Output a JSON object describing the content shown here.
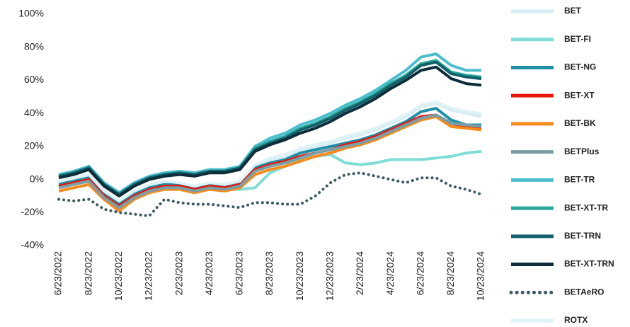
{
  "chart_data": {
    "type": "line",
    "categories": [
      "6/23/2022",
      null,
      "8/23/2022",
      null,
      "10/23/2022",
      null,
      "12/23/2022",
      null,
      "2/23/2023",
      null,
      "4/23/2023",
      null,
      "6/23/2023",
      null,
      "8/23/2023",
      null,
      "10/23/2023",
      null,
      "12/23/2023",
      null,
      "2/23/2024",
      null,
      "4/23/2024",
      null,
      "6/23/2024",
      null,
      "8/23/2024",
      null,
      "10/23/2024"
    ],
    "ylim": [
      -40,
      100
    ],
    "yticks": [
      {
        "value": -40,
        "label": "-40%"
      },
      {
        "value": -20,
        "label": "-20%"
      },
      {
        "value": 0,
        "label": "0%"
      },
      {
        "value": 20,
        "label": "20%"
      },
      {
        "value": 40,
        "label": "40%"
      },
      {
        "value": 60,
        "label": "60%"
      },
      {
        "value": 80,
        "label": "80%"
      },
      {
        "value": 100,
        "label": "100%"
      }
    ],
    "series": [
      {
        "name": "BET",
        "color": "#d4ecf3",
        "values": [
          -2,
          0,
          2,
          -8,
          -14,
          -8,
          -4,
          -2,
          -3,
          -5,
          -3,
          -4,
          -2,
          8,
          12,
          14,
          18,
          20,
          22,
          25,
          27,
          30,
          34,
          38,
          44,
          46,
          42,
          40,
          38
        ]
      },
      {
        "name": "BET-FI",
        "color": "#7fdcd6",
        "values": [
          -4,
          -2,
          0,
          -10,
          -16,
          -10,
          -6,
          -4,
          -5,
          -7,
          -5,
          -6,
          -6,
          -5,
          4,
          8,
          12,
          14,
          15,
          10,
          9,
          10,
          12,
          12,
          12,
          13,
          14,
          16,
          17
        ]
      },
      {
        "name": "BET-NG",
        "color": "#1f8fa8",
        "values": [
          -3,
          -1,
          1,
          -9,
          -15,
          -9,
          -5,
          -3,
          -3,
          -5,
          -3,
          -4,
          -2,
          7,
          10,
          12,
          16,
          18,
          20,
          22,
          24,
          27,
          31,
          35,
          41,
          43,
          36,
          33,
          33
        ]
      },
      {
        "name": "BET-XT",
        "color": "#e8170e",
        "values": [
          -4,
          -2,
          0,
          -10,
          -16,
          -10,
          -6,
          -4,
          -4,
          -6,
          -4,
          -5,
          -3,
          6,
          9,
          11,
          14,
          16,
          18,
          21,
          23,
          26,
          30,
          34,
          38,
          39,
          34,
          32,
          31
        ]
      },
      {
        "name": "BET-BK",
        "color": "#f78a1d",
        "values": [
          -7,
          -5,
          -3,
          -12,
          -19,
          -12,
          -8,
          -6,
          -6,
          -8,
          -6,
          -7,
          -5,
          3,
          6,
          8,
          11,
          14,
          16,
          19,
          21,
          24,
          28,
          32,
          36,
          38,
          32,
          31,
          30
        ]
      },
      {
        "name": "BETPlus",
        "color": "#7a9ea6",
        "values": [
          -5,
          -3,
          -1,
          -11,
          -17,
          -11,
          -7,
          -5,
          -5,
          -7,
          -5,
          -6,
          -4,
          5,
          8,
          10,
          13,
          16,
          18,
          20,
          22,
          25,
          29,
          33,
          37,
          39,
          34,
          33,
          32
        ]
      },
      {
        "name": "BET-TR",
        "color": "#4bbdcc",
        "values": [
          3,
          5,
          8,
          -2,
          -8,
          -2,
          2,
          4,
          5,
          4,
          6,
          6,
          8,
          20,
          25,
          28,
          33,
          36,
          40,
          45,
          49,
          54,
          60,
          66,
          74,
          76,
          69,
          66,
          66
        ]
      },
      {
        "name": "BET-XT-TR",
        "color": "#27a79a",
        "values": [
          2,
          4,
          7,
          -3,
          -9,
          -3,
          1,
          3,
          4,
          3,
          5,
          5,
          7,
          19,
          23,
          26,
          31,
          34,
          38,
          43,
          47,
          52,
          58,
          63,
          70,
          72,
          65,
          63,
          62
        ]
      },
      {
        "name": "BET-TRN",
        "color": "#13606b",
        "values": [
          2,
          4,
          7,
          -3,
          -9,
          -3,
          1,
          3,
          4,
          3,
          5,
          5,
          7,
          18,
          22,
          25,
          30,
          33,
          37,
          42,
          46,
          51,
          57,
          62,
          69,
          71,
          64,
          62,
          61
        ]
      },
      {
        "name": "BET-XT-TRN",
        "color": "#0d2d3a",
        "values": [
          1,
          3,
          6,
          -4,
          -10,
          -4,
          0,
          2,
          3,
          2,
          4,
          4,
          6,
          17,
          21,
          24,
          28,
          31,
          35,
          40,
          44,
          49,
          55,
          60,
          66,
          68,
          61,
          58,
          57
        ]
      },
      {
        "name": "BETAeRO",
        "color": "#3b5b60",
        "style": "dotted",
        "values": [
          -12,
          -13,
          -12,
          -18,
          -20,
          -21,
          -22,
          -12,
          -14,
          -15,
          -15,
          -16,
          -17,
          -14,
          -14,
          -15,
          -15,
          -10,
          -2,
          3,
          4,
          2,
          0,
          -2,
          1,
          1,
          -4,
          -6,
          -9
        ]
      },
      {
        "name": "ROTX",
        "color": "#dff2f6",
        "values": [
          -1,
          1,
          3,
          -7,
          -13,
          -7,
          -3,
          -1,
          -2,
          -4,
          -2,
          -3,
          -1,
          9,
          13,
          15,
          19,
          21,
          23,
          26,
          28,
          31,
          35,
          39,
          45,
          47,
          43,
          41,
          40
        ]
      }
    ]
  }
}
